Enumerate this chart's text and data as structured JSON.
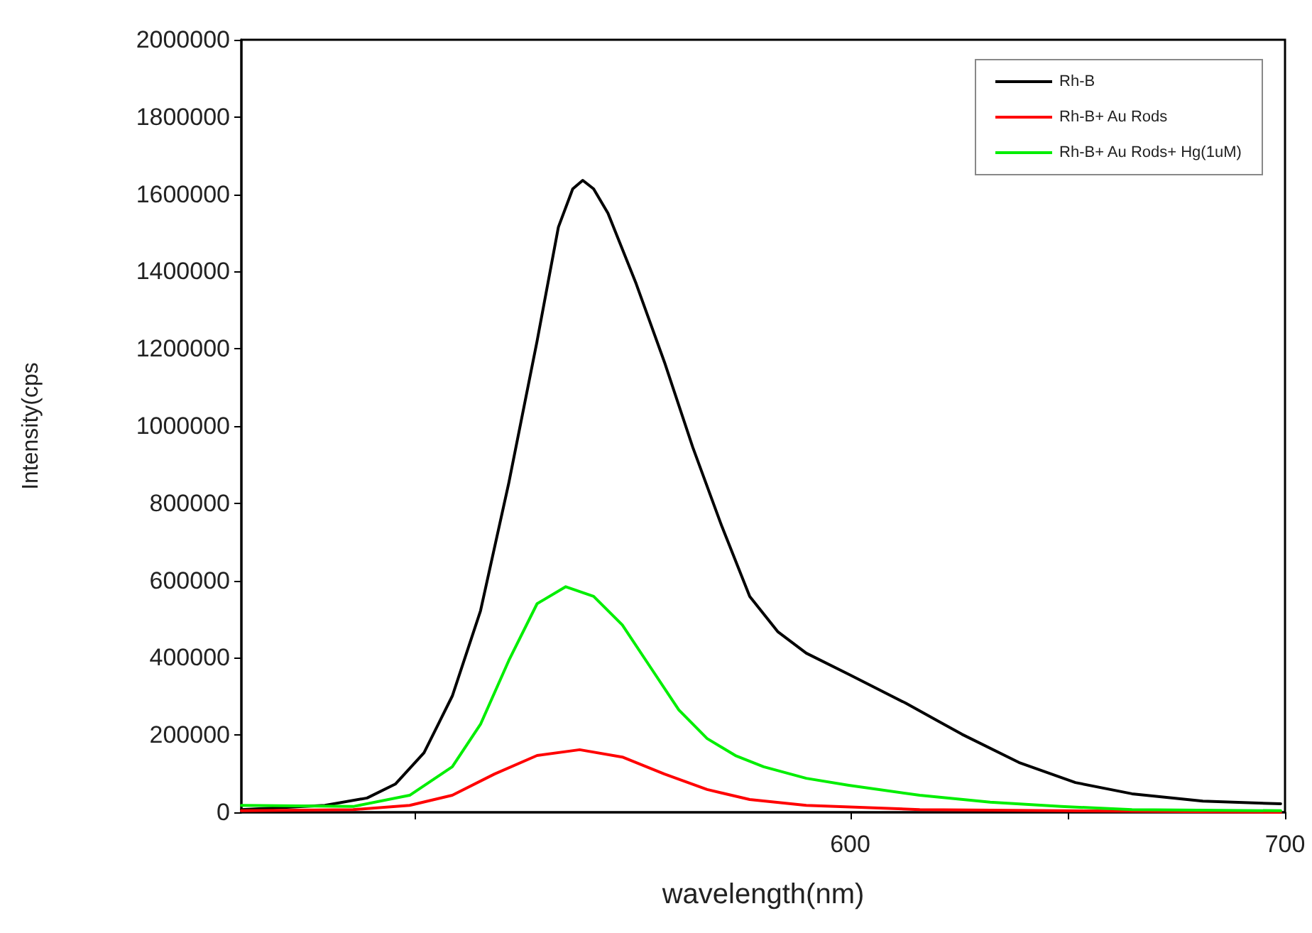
{
  "chart_data": {
    "type": "line",
    "xlabel": "wavelength(nm)",
    "ylabel": "Intensity(cps",
    "xlim": [
      460,
      700
    ],
    "xticks": [
      {
        "value": 500,
        "label": null
      },
      600,
      {
        "value": 650,
        "label": null
      },
      700
    ],
    "ylim": [
      0,
      2000000
    ],
    "yticks": [
      0,
      200000,
      400000,
      600000,
      800000,
      1000000,
      1200000,
      1400000,
      1600000,
      1800000,
      2000000
    ],
    "grid": false,
    "legend": "top right",
    "marker": "none",
    "line_style": "solid",
    "series": [
      {
        "name": "Rh-B",
        "color": "#000000",
        "x": [
          460,
          479.2,
          488.9,
          495.4,
          502,
          508.5,
          515,
          521.5,
          528,
          532.9,
          536.2,
          538.5,
          541,
          544.3,
          550.8,
          557.3,
          563.8,
          570.4,
          576.9,
          583.4,
          589.9,
          599.7,
          612.7,
          625.7,
          638.8,
          651.8,
          664.8,
          681.1,
          699
        ],
        "values": [
          7000,
          18000,
          37000,
          73000,
          154000,
          301000,
          522000,
          853000,
          1220000,
          1515000,
          1614000,
          1636000,
          1614000,
          1551000,
          1368000,
          1165000,
          945000,
          743000,
          559000,
          467000,
          412000,
          357000,
          283000,
          202000,
          129000,
          77000,
          48000,
          29000,
          22000
        ]
      },
      {
        "name": "Rh-B+ Au Rods",
        "color": "#ff0000",
        "x": [
          460,
          485.7,
          498.7,
          508.5,
          518.2,
          528,
          537.8,
          547.6,
          557.3,
          567.1,
          576.9,
          589.9,
          616,
          648.5,
          699
        ],
        "values": [
          4000,
          7000,
          18000,
          44000,
          99000,
          147000,
          162000,
          143000,
          99000,
          59000,
          33000,
          18000,
          7000,
          4000,
          0
        ]
      },
      {
        "name": "Rh-B+ Au Rods+ Hg(1uM)",
        "color": "#00ee00",
        "x": [
          460,
          485.7,
          498.7,
          508.5,
          515,
          521.5,
          528,
          534.6,
          541,
          547.6,
          554.1,
          560.6,
          567.1,
          573.6,
          580.1,
          589.9,
          599.7,
          616,
          632.2,
          648.5,
          664.8,
          699
        ],
        "values": [
          18000,
          15000,
          44000,
          118000,
          228000,
          393000,
          540000,
          584000,
          559000,
          485000,
          375000,
          265000,
          191000,
          147000,
          118000,
          88000,
          70000,
          44000,
          26000,
          15000,
          7000,
          4000
        ]
      }
    ]
  }
}
